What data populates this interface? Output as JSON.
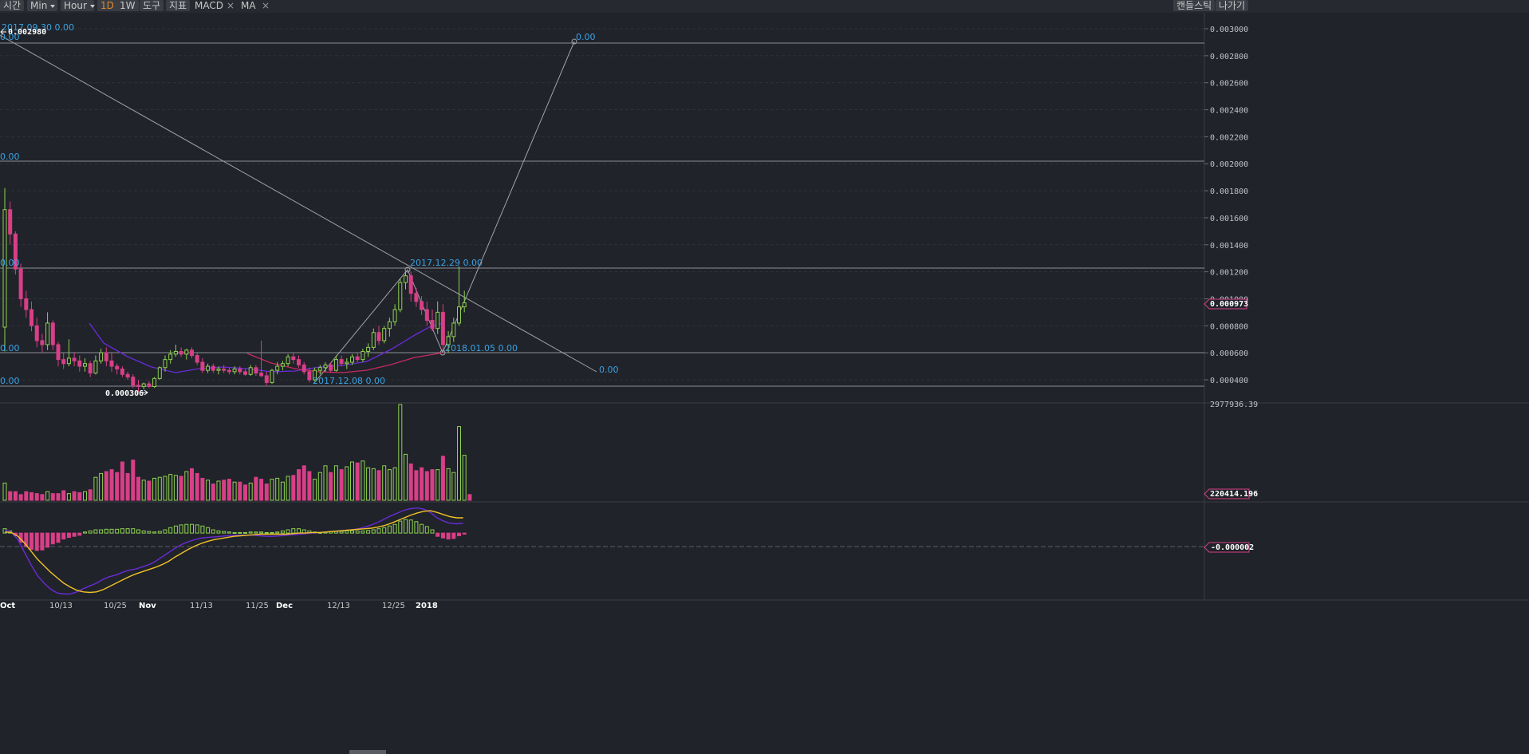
{
  "toolbar": {
    "time_label": "시간",
    "min_select": "Min",
    "hour_select": "Hour",
    "day_button": "1D",
    "week_button": "1W",
    "tools_button": "도구",
    "indicators_button": "지표",
    "macd_label": "MACD",
    "ma_label": "MA",
    "close_glyph": "×",
    "candlestick_button": "캔들스틱",
    "exit_button": "나가기"
  },
  "colors": {
    "background": "#20232a",
    "up_candle": "#8fd14f",
    "down_candle": "#d83f87",
    "ma_purple": "#6a2bd8",
    "ma_red": "#c62a5f",
    "signal_yellow": "#f2c228",
    "annotation_blue": "#3aa3e3",
    "drawing_line": "#a0a3a8"
  },
  "price_axis": {
    "ticks": [
      "0.003000",
      "0.002800",
      "0.002600",
      "0.002400",
      "0.002200",
      "0.002000",
      "0.001800",
      "0.001600",
      "0.001400",
      "0.001200",
      "0.001000",
      "0.000800",
      "0.000600",
      "0.000400"
    ],
    "current_price": "0.000973"
  },
  "volume_axis": {
    "max_label": "2977936.39",
    "current_volume": "220414.196"
  },
  "macd_axis": {
    "current_value": "-0.000002"
  },
  "time_axis": {
    "labels": [
      "Oct",
      "10/13",
      "10/25",
      "Nov",
      "11/13",
      "11/25",
      "Dec",
      "12/13",
      "12/25",
      "2018"
    ]
  },
  "annotations": {
    "top_left_date": "2017.09.30 0.00",
    "top_left_price": "0.002980",
    "top_left_value": "0.00",
    "target_value": "0.00",
    "left_level_1": "0.00",
    "left_level_2": "0.00",
    "left_level_3": "0.00",
    "left_level_4": "0.00",
    "low_price": "0.000306",
    "peak_label": "2017.12.29 0.00",
    "dip_label": "2018.01.05 0.00",
    "start_label": "2017.12.08 0.00",
    "trend_end_value": "0.00"
  },
  "chart_data": {
    "type": "candlestick",
    "timeframe": "1D",
    "price_ylim": [
      0.00035,
      0.00309
    ],
    "candles": [
      {
        "o": 0.00079,
        "h": 0.00182,
        "l": 0.00061,
        "c": 0.00166
      },
      {
        "o": 0.00166,
        "h": 0.00172,
        "l": 0.0014,
        "c": 0.00148
      },
      {
        "o": 0.00148,
        "h": 0.0015,
        "l": 0.00118,
        "c": 0.00122
      },
      {
        "o": 0.00122,
        "h": 0.00126,
        "l": 0.00094,
        "c": 0.001
      },
      {
        "o": 0.001,
        "h": 0.00106,
        "l": 0.00086,
        "c": 0.00092
      },
      {
        "o": 0.00092,
        "h": 0.00098,
        "l": 0.00076,
        "c": 0.0008
      },
      {
        "o": 0.0008,
        "h": 0.00086,
        "l": 0.00064,
        "c": 0.00069
      },
      {
        "o": 0.00069,
        "h": 0.00074,
        "l": 0.0006,
        "c": 0.00066
      },
      {
        "o": 0.00066,
        "h": 0.0009,
        "l": 0.00062,
        "c": 0.00082
      },
      {
        "o": 0.00082,
        "h": 0.00084,
        "l": 0.00062,
        "c": 0.00066
      },
      {
        "o": 0.00066,
        "h": 0.00068,
        "l": 0.0005,
        "c": 0.00055
      },
      {
        "o": 0.00055,
        "h": 0.0006,
        "l": 0.00048,
        "c": 0.00052
      },
      {
        "o": 0.00052,
        "h": 0.0007,
        "l": 0.0005,
        "c": 0.00056
      },
      {
        "o": 0.00056,
        "h": 0.0006,
        "l": 0.0005,
        "c": 0.00054
      },
      {
        "o": 0.00054,
        "h": 0.00058,
        "l": 0.00046,
        "c": 0.0005
      },
      {
        "o": 0.0005,
        "h": 0.00056,
        "l": 0.00046,
        "c": 0.00052
      },
      {
        "o": 0.00052,
        "h": 0.00054,
        "l": 0.00042,
        "c": 0.00045
      },
      {
        "o": 0.00045,
        "h": 0.00058,
        "l": 0.00044,
        "c": 0.00054
      },
      {
        "o": 0.00054,
        "h": 0.00063,
        "l": 0.00052,
        "c": 0.0006
      },
      {
        "o": 0.0006,
        "h": 0.00064,
        "l": 0.0005,
        "c": 0.00054
      },
      {
        "o": 0.00054,
        "h": 0.0006,
        "l": 0.00046,
        "c": 0.0005
      },
      {
        "o": 0.0005,
        "h": 0.00052,
        "l": 0.00044,
        "c": 0.00048
      },
      {
        "o": 0.00048,
        "h": 0.0005,
        "l": 0.00042,
        "c": 0.00044
      },
      {
        "o": 0.00044,
        "h": 0.00046,
        "l": 0.0004,
        "c": 0.00042
      },
      {
        "o": 0.00042,
        "h": 0.00044,
        "l": 0.00034,
        "c": 0.00036
      },
      {
        "o": 0.00036,
        "h": 0.0004,
        "l": 0.00031,
        "c": 0.00035
      },
      {
        "o": 0.00035,
        "h": 0.00038,
        "l": 0.00033,
        "c": 0.00037
      },
      {
        "o": 0.00037,
        "h": 0.00039,
        "l": 0.00034,
        "c": 0.00035
      },
      {
        "o": 0.00035,
        "h": 0.00042,
        "l": 0.00034,
        "c": 0.00041
      },
      {
        "o": 0.00041,
        "h": 0.0005,
        "l": 0.0004,
        "c": 0.00049
      },
      {
        "o": 0.00049,
        "h": 0.00058,
        "l": 0.00046,
        "c": 0.00055
      },
      {
        "o": 0.00055,
        "h": 0.00062,
        "l": 0.00052,
        "c": 0.00059
      },
      {
        "o": 0.00059,
        "h": 0.00066,
        "l": 0.00057,
        "c": 0.00061
      },
      {
        "o": 0.00061,
        "h": 0.00064,
        "l": 0.00057,
        "c": 0.00059
      },
      {
        "o": 0.00059,
        "h": 0.00063,
        "l": 0.00055,
        "c": 0.00062
      },
      {
        "o": 0.00062,
        "h": 0.00064,
        "l": 0.00056,
        "c": 0.00058
      },
      {
        "o": 0.00058,
        "h": 0.0006,
        "l": 0.00051,
        "c": 0.00053
      },
      {
        "o": 0.00053,
        "h": 0.00056,
        "l": 0.00045,
        "c": 0.00047
      },
      {
        "o": 0.00047,
        "h": 0.00052,
        "l": 0.00045,
        "c": 0.0005
      },
      {
        "o": 0.0005,
        "h": 0.00052,
        "l": 0.00045,
        "c": 0.00047
      },
      {
        "o": 0.00047,
        "h": 0.0005,
        "l": 0.00044,
        "c": 0.00048
      },
      {
        "o": 0.00048,
        "h": 0.00051,
        "l": 0.00045,
        "c": 0.00047
      },
      {
        "o": 0.00047,
        "h": 0.00049,
        "l": 0.00044,
        "c": 0.00046
      },
      {
        "o": 0.00046,
        "h": 0.0005,
        "l": 0.00044,
        "c": 0.00048
      },
      {
        "o": 0.00048,
        "h": 0.0005,
        "l": 0.00044,
        "c": 0.00046
      },
      {
        "o": 0.00046,
        "h": 0.00048,
        "l": 0.00043,
        "c": 0.00044
      },
      {
        "o": 0.00044,
        "h": 0.00051,
        "l": 0.00043,
        "c": 0.00049
      },
      {
        "o": 0.00049,
        "h": 0.00051,
        "l": 0.00043,
        "c": 0.00045
      },
      {
        "o": 0.00045,
        "h": 0.00069,
        "l": 0.00042,
        "c": 0.00043
      },
      {
        "o": 0.00043,
        "h": 0.00046,
        "l": 0.00036,
        "c": 0.00038
      },
      {
        "o": 0.00038,
        "h": 0.00048,
        "l": 0.00037,
        "c": 0.00047
      },
      {
        "o": 0.00047,
        "h": 0.00053,
        "l": 0.00044,
        "c": 0.0005
      },
      {
        "o": 0.0005,
        "h": 0.00054,
        "l": 0.00047,
        "c": 0.00052
      },
      {
        "o": 0.00052,
        "h": 0.00059,
        "l": 0.0005,
        "c": 0.00057
      },
      {
        "o": 0.00057,
        "h": 0.0006,
        "l": 0.00052,
        "c": 0.00055
      },
      {
        "o": 0.00055,
        "h": 0.00058,
        "l": 0.00049,
        "c": 0.00051
      },
      {
        "o": 0.00051,
        "h": 0.00053,
        "l": 0.00044,
        "c": 0.00046
      },
      {
        "o": 0.00046,
        "h": 0.00049,
        "l": 0.00038,
        "c": 0.0004
      },
      {
        "o": 0.0004,
        "h": 0.00049,
        "l": 0.00039,
        "c": 0.00047
      },
      {
        "o": 0.00047,
        "h": 0.00051,
        "l": 0.00044,
        "c": 0.00049
      },
      {
        "o": 0.00049,
        "h": 0.00053,
        "l": 0.00046,
        "c": 0.00051
      },
      {
        "o": 0.00051,
        "h": 0.00053,
        "l": 0.00045,
        "c": 0.00047
      },
      {
        "o": 0.00047,
        "h": 0.00058,
        "l": 0.00046,
        "c": 0.00055
      },
      {
        "o": 0.00055,
        "h": 0.00058,
        "l": 0.0005,
        "c": 0.00052
      },
      {
        "o": 0.00052,
        "h": 0.00056,
        "l": 0.00048,
        "c": 0.00053
      },
      {
        "o": 0.00053,
        "h": 0.00059,
        "l": 0.00051,
        "c": 0.00057
      },
      {
        "o": 0.00057,
        "h": 0.0006,
        "l": 0.00053,
        "c": 0.00055
      },
      {
        "o": 0.00055,
        "h": 0.00063,
        "l": 0.00053,
        "c": 0.00061
      },
      {
        "o": 0.00061,
        "h": 0.00067,
        "l": 0.00057,
        "c": 0.00064
      },
      {
        "o": 0.00064,
        "h": 0.00078,
        "l": 0.00062,
        "c": 0.00075
      },
      {
        "o": 0.00075,
        "h": 0.0008,
        "l": 0.00066,
        "c": 0.00069
      },
      {
        "o": 0.00069,
        "h": 0.0008,
        "l": 0.00067,
        "c": 0.00078
      },
      {
        "o": 0.00078,
        "h": 0.00086,
        "l": 0.00072,
        "c": 0.00083
      },
      {
        "o": 0.00083,
        "h": 0.00096,
        "l": 0.0008,
        "c": 0.00092
      },
      {
        "o": 0.00092,
        "h": 0.00115,
        "l": 0.0009,
        "c": 0.00112
      },
      {
        "o": 0.00112,
        "h": 0.0012,
        "l": 0.00107,
        "c": 0.00117
      },
      {
        "o": 0.00117,
        "h": 0.0012,
        "l": 0.00098,
        "c": 0.00104
      },
      {
        "o": 0.00104,
        "h": 0.00108,
        "l": 0.00094,
        "c": 0.00098
      },
      {
        "o": 0.00098,
        "h": 0.00102,
        "l": 0.00088,
        "c": 0.00092
      },
      {
        "o": 0.00092,
        "h": 0.00098,
        "l": 0.0008,
        "c": 0.00084
      },
      {
        "o": 0.00084,
        "h": 0.00092,
        "l": 0.00076,
        "c": 0.00078
      },
      {
        "o": 0.00078,
        "h": 0.00098,
        "l": 0.00074,
        "c": 0.0009
      },
      {
        "o": 0.0009,
        "h": 0.00096,
        "l": 0.00062,
        "c": 0.00066
      },
      {
        "o": 0.00066,
        "h": 0.00076,
        "l": 0.0006,
        "c": 0.00072
      },
      {
        "o": 0.00072,
        "h": 0.00086,
        "l": 0.00068,
        "c": 0.00082
      },
      {
        "o": 0.00082,
        "h": 0.00124,
        "l": 0.0008,
        "c": 0.00094
      },
      {
        "o": 0.00094,
        "h": 0.00106,
        "l": 0.0009,
        "c": 0.00097
      }
    ],
    "volume_ylim": [
      0,
      2977936.39
    ],
    "volumes": [
      0.18,
      0.09,
      0.09,
      0.06,
      0.09,
      0.08,
      0.07,
      0.06,
      0.09,
      0.07,
      0.07,
      0.1,
      0.07,
      0.09,
      0.08,
      0.09,
      0.11,
      0.24,
      0.28,
      0.3,
      0.32,
      0.29,
      0.4,
      0.28,
      0.42,
      0.24,
      0.21,
      0.2,
      0.23,
      0.24,
      0.25,
      0.27,
      0.26,
      0.25,
      0.3,
      0.33,
      0.28,
      0.23,
      0.21,
      0.17,
      0.2,
      0.21,
      0.22,
      0.19,
      0.19,
      0.16,
      0.18,
      0.24,
      0.22,
      0.17,
      0.22,
      0.23,
      0.19,
      0.25,
      0.26,
      0.32,
      0.36,
      0.3,
      0.22,
      0.29,
      0.36,
      0.29,
      0.36,
      0.32,
      0.35,
      0.4,
      0.39,
      0.41,
      0.34,
      0.33,
      0.31,
      0.36,
      0.32,
      0.34,
      1.0,
      0.48,
      0.38,
      0.31,
      0.34,
      0.3,
      0.32,
      0.32,
      0.46,
      0.33,
      0.29,
      0.77,
      0.47,
      0.06
    ],
    "macd_ylim": [
      -0.00012,
      5e-05
    ],
    "macd_hist": [
      8e-06,
      4e-06,
      -5e-06,
      -1.7e-05,
      -2.5e-05,
      -3e-05,
      -3.2e-05,
      -3.1e-05,
      -2.6e-05,
      -2e-05,
      -1.7e-05,
      -1.1e-05,
      -8e-06,
      -6e-06,
      -4e-06,
      2e-06,
      4e-06,
      6e-06,
      6e-06,
      7e-06,
      7e-06,
      7e-06,
      8e-06,
      8e-06,
      8e-06,
      6e-06,
      4e-06,
      3e-06,
      2e-06,
      3e-06,
      6e-06,
      1e-05,
      1.3e-05,
      1.5e-05,
      1.6e-05,
      1.6e-05,
      1.5e-05,
      1.3e-05,
      1e-05,
      6e-06,
      4e-06,
      3e-06,
      2e-06,
      1e-06,
      1e-06,
      1e-06,
      2e-06,
      2e-06,
      2e-06,
      1e-06,
      1e-06,
      2e-06,
      4e-06,
      6e-06,
      8e-06,
      8e-06,
      6e-06,
      4e-06,
      2e-06,
      1e-06,
      2e-06,
      3e-06,
      3e-06,
      3e-06,
      4e-06,
      4e-06,
      4e-06,
      4e-06,
      5e-06,
      6e-06,
      8e-06,
      1e-05,
      1.3e-05,
      1.6e-05,
      2.2e-05,
      2.5e-05,
      2.4e-05,
      2.1e-05,
      1.6e-05,
      1.2e-05,
      6e-06,
      -6e-06,
      -9e-06,
      -1.1e-05,
      -1e-05,
      -5e-06,
      -2e-06
    ],
    "macd_line": [
      6e-06,
      2e-06,
      -1.2e-05,
      -3.5e-05,
      -5.8e-05,
      -7.8e-05,
      -9.2e-05,
      -0.000103,
      -0.00011,
      -0.000112,
      -0.000112,
      -0.000108,
      -0.000102,
      -9.7e-05,
      -9.2e-05,
      -8.5e-05,
      -8e-05,
      -7.7e-05,
      -7.2e-05,
      -6.8e-05,
      -6.6e-05,
      -6.2e-05,
      -5.8e-05,
      -5.2e-05,
      -4.4e-05,
      -3.6e-05,
      -2.8e-05,
      -2.1e-05,
      -1.6e-05,
      -1.2e-05,
      -9e-06,
      -8e-06,
      -7e-06,
      -6e-06,
      -5e-06,
      -4e-06,
      -4e-06,
      -4e-06,
      -4e-06,
      -5e-06,
      -6e-06,
      -6e-06,
      -5e-06,
      -4e-06,
      -3e-06,
      -2e-06,
      -1e-06,
      0,
      1e-06,
      2e-06,
      3e-06,
      4e-06,
      5e-06,
      6e-06,
      8e-06,
      1.1e-05,
      1.5e-05,
      2e-05,
      2.6e-05,
      3.2e-05,
      3.7e-05,
      4.2e-05,
      4.5e-05,
      4.6e-05,
      4.4e-05,
      3.8e-05,
      2.8e-05,
      2.2e-05,
      1.8e-05,
      1.7e-05,
      1.8e-05
    ],
    "signal_line": [
      2e-06,
      1e-06,
      -6e-06,
      -1.8e-05,
      -3.3e-05,
      -4.8e-05,
      -6e-05,
      -7.2e-05,
      -8.2e-05,
      -9.2e-05,
      -9.9e-05,
      -0.000105,
      -0.000108,
      -0.000109,
      -0.000108,
      -0.000104,
      -9.8e-05,
      -9.2e-05,
      -8.6e-05,
      -8e-05,
      -7.5e-05,
      -7.1e-05,
      -6.7e-05,
      -6.3e-05,
      -5.8e-05,
      -5.2e-05,
      -4.4e-05,
      -3.7e-05,
      -3e-05,
      -2.4e-05,
      -1.9e-05,
      -1.5e-05,
      -1.2e-05,
      -1e-05,
      -8e-06,
      -6e-06,
      -5e-06,
      -4e-06,
      -3e-06,
      -2e-06,
      -2e-06,
      -2e-06,
      -2e-06,
      -2e-06,
      -1e-06,
      0,
      0,
      1e-06,
      1e-06,
      2e-06,
      3e-06,
      4e-06,
      5e-06,
      6e-06,
      7e-06,
      8e-06,
      9e-06,
      1.1e-05,
      1.4e-05,
      1.8e-05,
      2.3e-05,
      2.8e-05,
      3.3e-05,
      3.7e-05,
      4e-05,
      4.1e-05,
      3.8e-05,
      3.4e-05,
      3e-05,
      2.8e-05,
      2.8e-05
    ]
  }
}
